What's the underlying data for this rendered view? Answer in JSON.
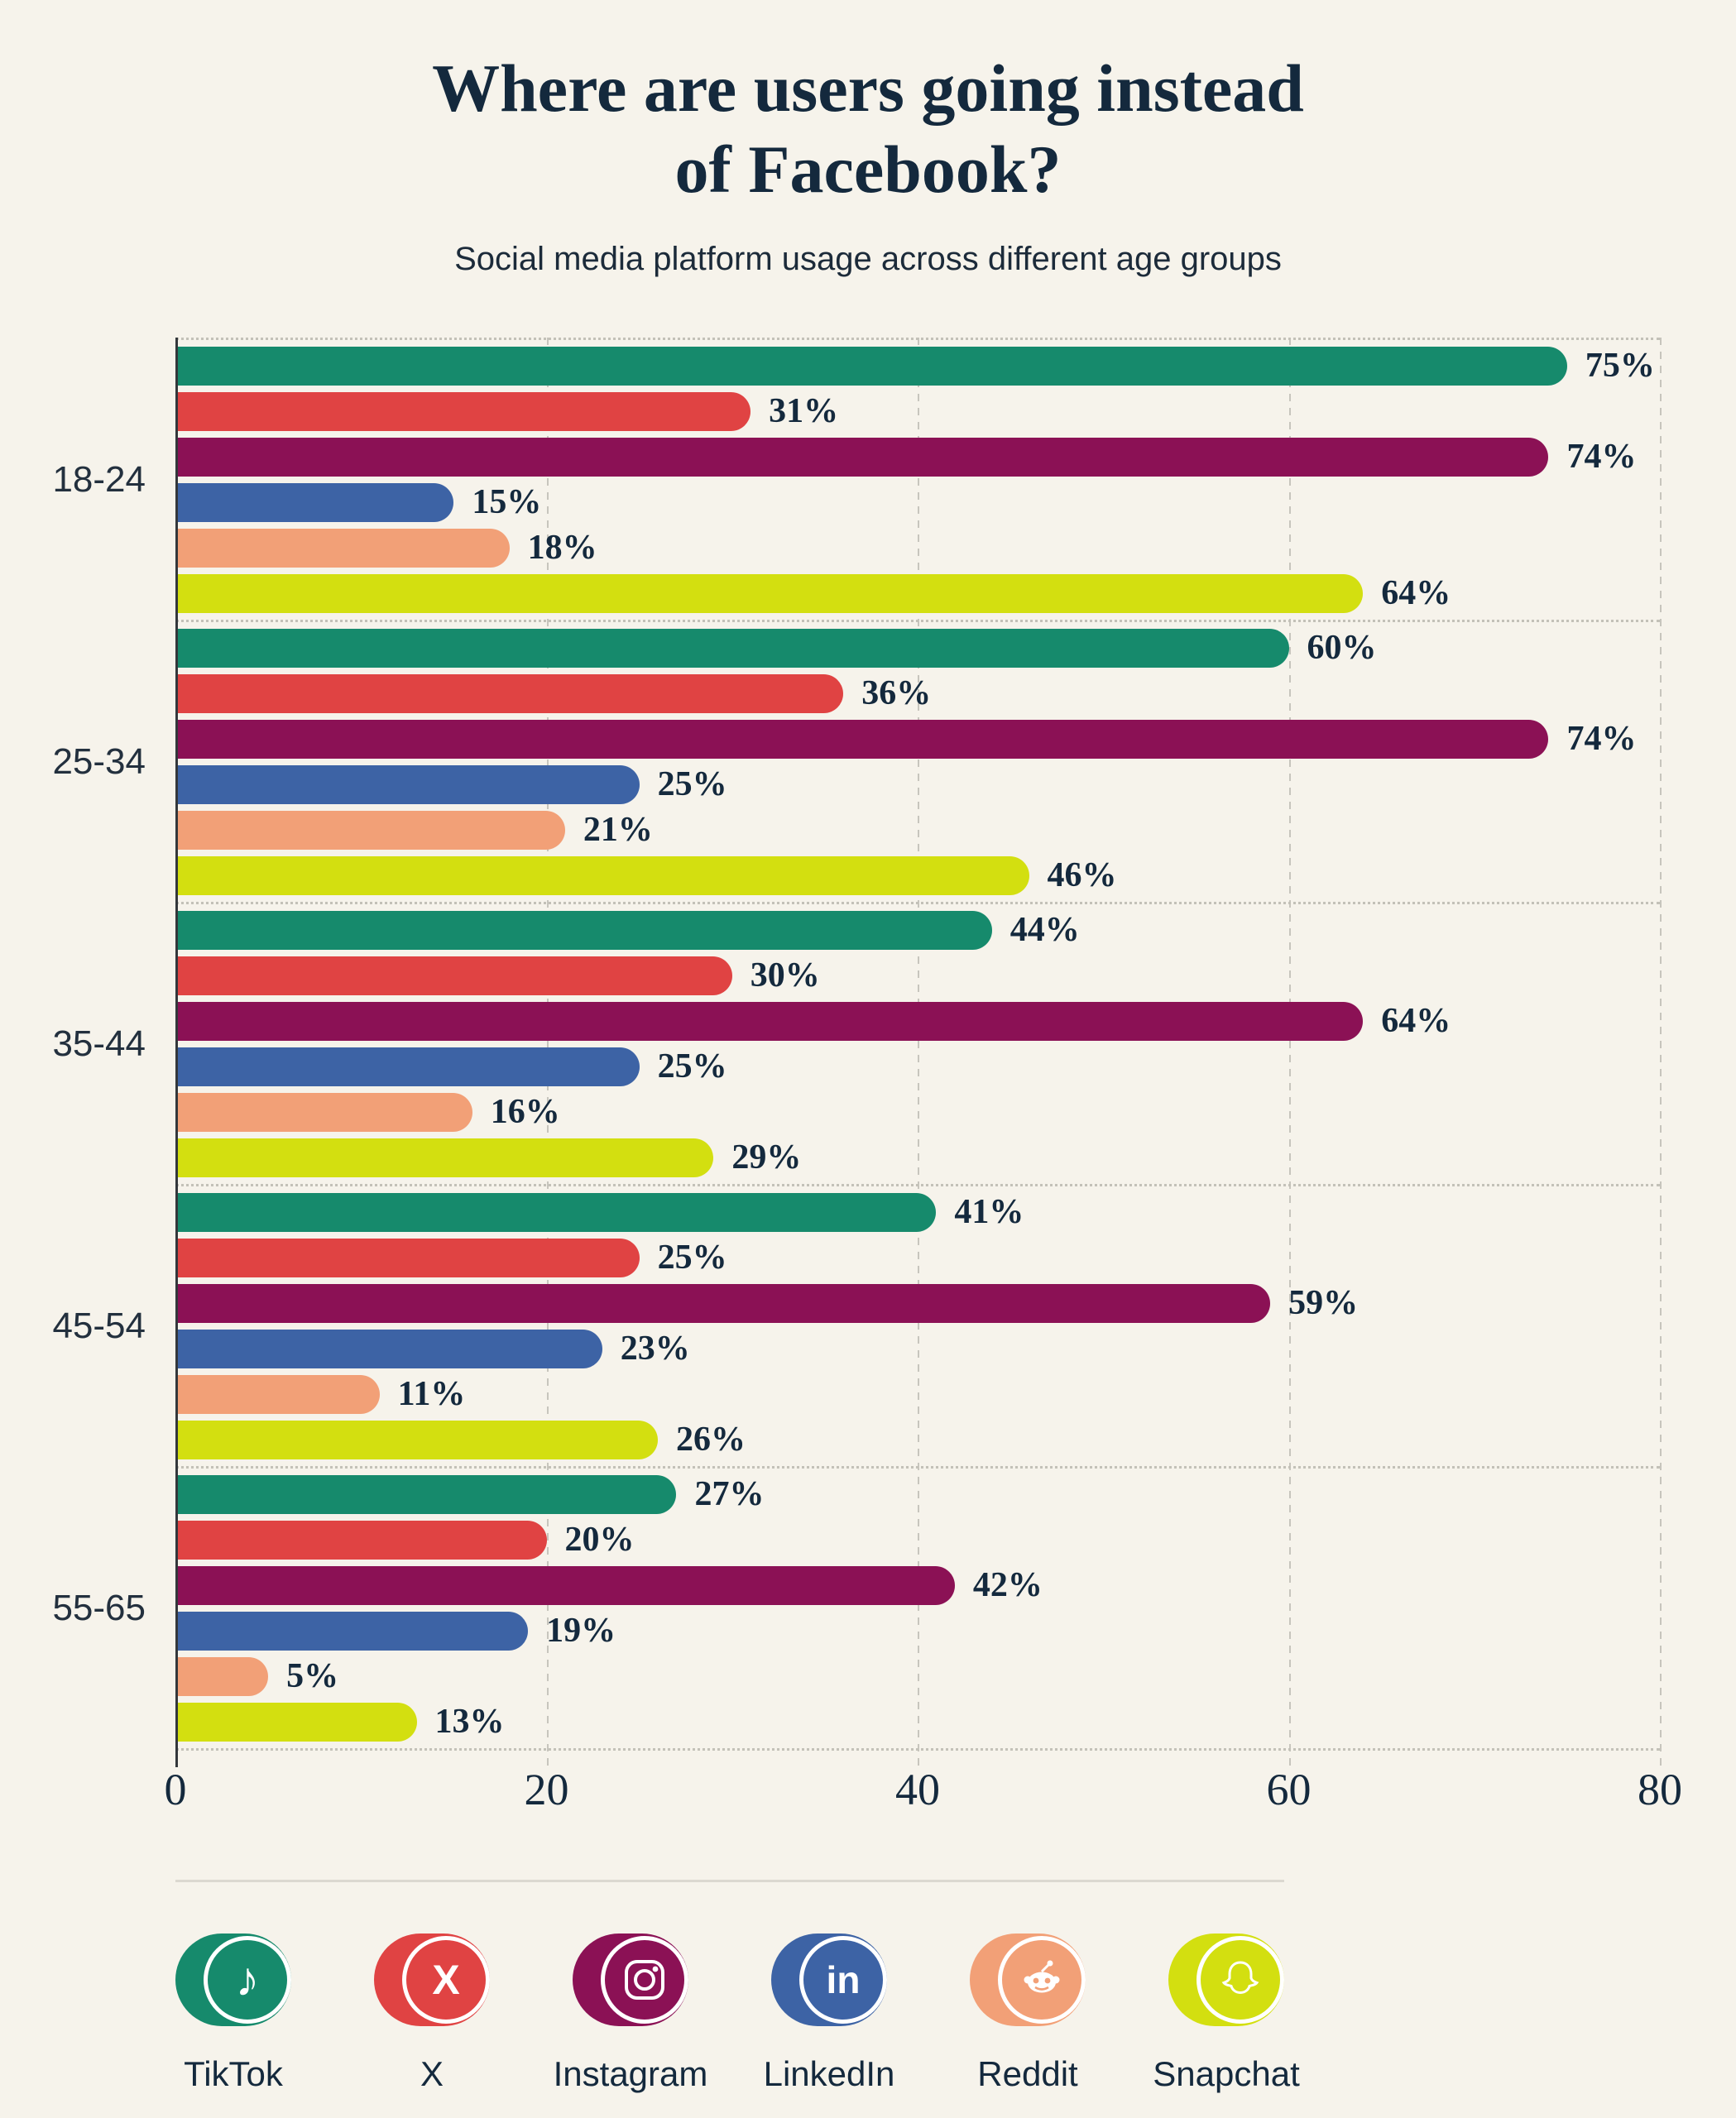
{
  "header": {
    "title_lines": [
      "Where are users going instead",
      "of Facebook?"
    ],
    "title": "Where are users going instead of Facebook?",
    "subtitle": "Social media platform usage across different age groups"
  },
  "chart_data": {
    "type": "bar",
    "orientation": "horizontal",
    "title": "Where are users going instead of Facebook?",
    "subtitle": "Social media platform usage across different age groups",
    "categories": [
      "18-24",
      "25-34",
      "35-44",
      "45-54",
      "55-65"
    ],
    "series": [
      {
        "name": "TikTok",
        "color": "#168A6C",
        "icon": "tiktok-icon",
        "values": [
          75,
          60,
          44,
          41,
          27
        ]
      },
      {
        "name": "X",
        "color": "#E04343",
        "icon": "x-icon",
        "values": [
          31,
          36,
          30,
          25,
          20
        ]
      },
      {
        "name": "Instagram",
        "color": "#8B1155",
        "icon": "instagram-icon",
        "values": [
          74,
          74,
          64,
          59,
          42
        ]
      },
      {
        "name": "LinkedIn",
        "color": "#3D63A5",
        "icon": "linkedin-icon",
        "values": [
          15,
          25,
          25,
          23,
          19
        ]
      },
      {
        "name": "Reddit",
        "color": "#F2A077",
        "icon": "reddit-icon",
        "values": [
          18,
          21,
          16,
          11,
          5
        ]
      },
      {
        "name": "Snapchat",
        "color": "#D3DF10",
        "icon": "snapchat-icon",
        "values": [
          64,
          46,
          29,
          26,
          13
        ]
      }
    ],
    "value_suffix": "%",
    "xlim": [
      0,
      80
    ],
    "x_ticks": [
      0,
      20,
      40,
      60,
      80
    ],
    "grid": "vertical-dashed",
    "legend_position": "bottom",
    "background_color": "#F6F3EB",
    "text_color": "#14293D"
  }
}
